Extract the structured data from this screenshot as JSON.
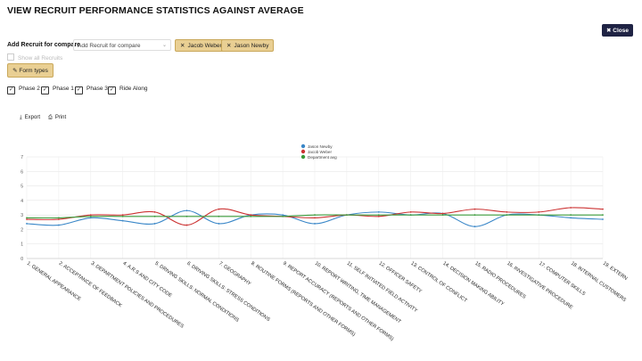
{
  "page": {
    "title": "VIEW RECRUIT PERFORMANCE STATISTICS AGAINST AVERAGE",
    "close_label": "Close",
    "close_icon": "x-icon"
  },
  "compare": {
    "label": "Add Recruit for compare",
    "select_value": "Add Recruit for compare",
    "chips": [
      {
        "label": "Jacob Weber"
      },
      {
        "label": "Jason Newby"
      }
    ],
    "show_all_label": "Show all Recruits",
    "form_types_label": "Form types",
    "form_types_icon": "sliders-icon"
  },
  "phases": [
    {
      "label": "Phase 2",
      "checked": true
    },
    {
      "label": "Phase 1",
      "checked": true
    },
    {
      "label": "Phase 3",
      "checked": true
    },
    {
      "label": "Ride Along",
      "checked": true
    }
  ],
  "tools": {
    "export_label": "Export",
    "print_label": "Print"
  },
  "chart_data": {
    "type": "line",
    "title": "",
    "xlabel": "",
    "ylabel": "",
    "ylim": [
      0,
      7
    ],
    "yticks": [
      0,
      1,
      2,
      3,
      4,
      5,
      6,
      7
    ],
    "grid": true,
    "legend_position": "top-center",
    "categories": [
      "1. GENERAL APPEARANCE",
      "2. ACCEPTANCE OF FEEDBACK",
      "3. DEPARTMENT POLICIES AND PROCEDURES",
      "4. A.R.S AND CITY CODE",
      "5. DRIVING SKILLS: NORMAL CONDITIONS",
      "6. DRIVING SKILLS: STRESS CONDITIONS",
      "7. GEOGRAPHY",
      "8. ROUTINE FORMS (REPORTS AND OTHER FORMS)",
      "9. REPORT ACCURACY (REPORTS AND OTHER FORMS)",
      "10. REPORT WRITING, TIME MANAGEMENT",
      "11. SELF INITIATED FIELD ACTIVITY",
      "12. OFFICER SAFETY",
      "13. CONTROL OF CONFLICT",
      "14. DECISION MAKING ABILITY",
      "15. RADIO PROCEDURES",
      "16. INVESTIGATIVE PROCEDURE",
      "17. COMPUTER SKILLS",
      "18. INTERNAL CUSTOMERS",
      "19. EXTERN"
    ],
    "series": [
      {
        "name": "Jason Newby",
        "color": "#3a87c8",
        "values": [
          2.4,
          2.3,
          2.8,
          2.6,
          2.4,
          3.3,
          2.4,
          3.0,
          3.0,
          2.4,
          3.0,
          3.2,
          3.0,
          3.1,
          2.2,
          3.0,
          3.0,
          2.8,
          2.7
        ]
      },
      {
        "name": "Jacob Weber",
        "color": "#cc3333",
        "values": [
          2.7,
          2.7,
          3.0,
          3.0,
          3.2,
          2.3,
          3.4,
          3.0,
          2.9,
          2.8,
          3.0,
          2.9,
          3.2,
          3.1,
          3.4,
          3.2,
          3.2,
          3.5,
          3.4
        ]
      },
      {
        "name": "Department avg",
        "color": "#3a9a3a",
        "values": [
          2.8,
          2.8,
          2.9,
          2.9,
          2.9,
          2.9,
          2.9,
          2.9,
          2.9,
          3.0,
          3.0,
          3.0,
          3.0,
          3.0,
          3.0,
          3.0,
          3.0,
          3.0,
          3.0
        ]
      }
    ]
  }
}
